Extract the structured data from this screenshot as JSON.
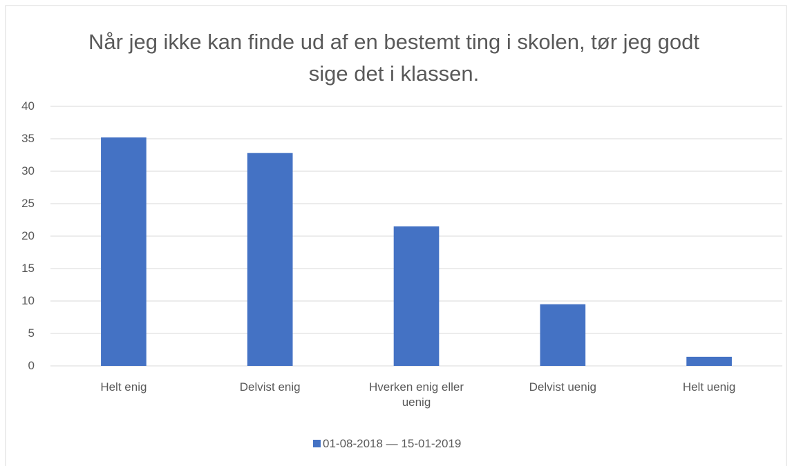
{
  "chart_data": {
    "type": "bar",
    "title": "Når jeg ikke kan finde ud af en bestemt ting i skolen, tør jeg godt sige det i klassen.",
    "categories": [
      "Helt enig",
      "Delvist enig",
      "Hverken enig eller uenig",
      "Delvist uenig",
      "Helt uenig"
    ],
    "series": [
      {
        "name": "01-08-2018 — 15-01-2019",
        "color": "#4472c4",
        "values": [
          35.2,
          32.8,
          21.5,
          9.5,
          1.4
        ]
      }
    ],
    "ylim": [
      0,
      40
    ],
    "yticks": [
      0,
      5,
      10,
      15,
      20,
      25,
      30,
      35,
      40
    ],
    "grid": true,
    "legend": "bottom"
  }
}
